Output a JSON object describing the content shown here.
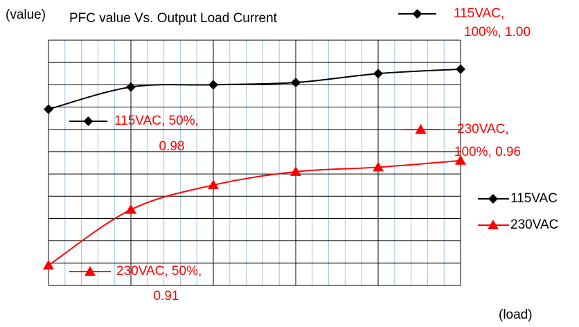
{
  "chart_data": {
    "type": "line",
    "title": "PFC value Vs. Output Load Current",
    "ylabel": "(value)",
    "xlabel": "(load)",
    "x": [
      0,
      1,
      2,
      3,
      4,
      5
    ],
    "xlim": [
      0,
      5
    ],
    "ylim": [
      0.9,
      1.01
    ],
    "xgrid": [
      0,
      1,
      2,
      3,
      4,
      5
    ],
    "xgrid_minor": [
      0.2,
      0.4,
      0.6,
      0.8,
      1.2,
      1.4,
      1.6,
      1.8,
      2.2,
      2.4,
      2.6,
      2.8,
      3.2,
      3.4,
      3.6,
      3.8,
      4.2,
      4.4,
      4.6,
      4.8
    ],
    "ygrid": [
      0.9,
      0.91,
      0.92,
      0.93,
      0.94,
      0.95,
      0.96,
      0.97,
      0.98,
      0.99,
      1.0,
      1.01
    ],
    "smooth": true,
    "series": [
      {
        "name": "115VAC",
        "color": "#000000",
        "marker": "diamond",
        "values": [
          0.979,
          0.989,
          0.99,
          0.991,
          0.995,
          0.997
        ],
        "value_labels": [
          [
            "115VAC, 50%,",
            "0.98"
          ],
          null,
          null,
          null,
          null,
          [
            "115VAC,",
            "100%, 1.00"
          ]
        ]
      },
      {
        "name": "230VAC",
        "color": "#ff0000",
        "marker": "triangle",
        "values": [
          0.909,
          0.934,
          0.945,
          0.951,
          0.953,
          0.956
        ],
        "value_labels": [
          [
            "230VAC, 50%,",
            "0.91"
          ],
          null,
          null,
          null,
          null,
          [
            "230VAC,",
            "100%, 0.96"
          ]
        ]
      }
    ],
    "value_label_color": "#ff0000"
  }
}
